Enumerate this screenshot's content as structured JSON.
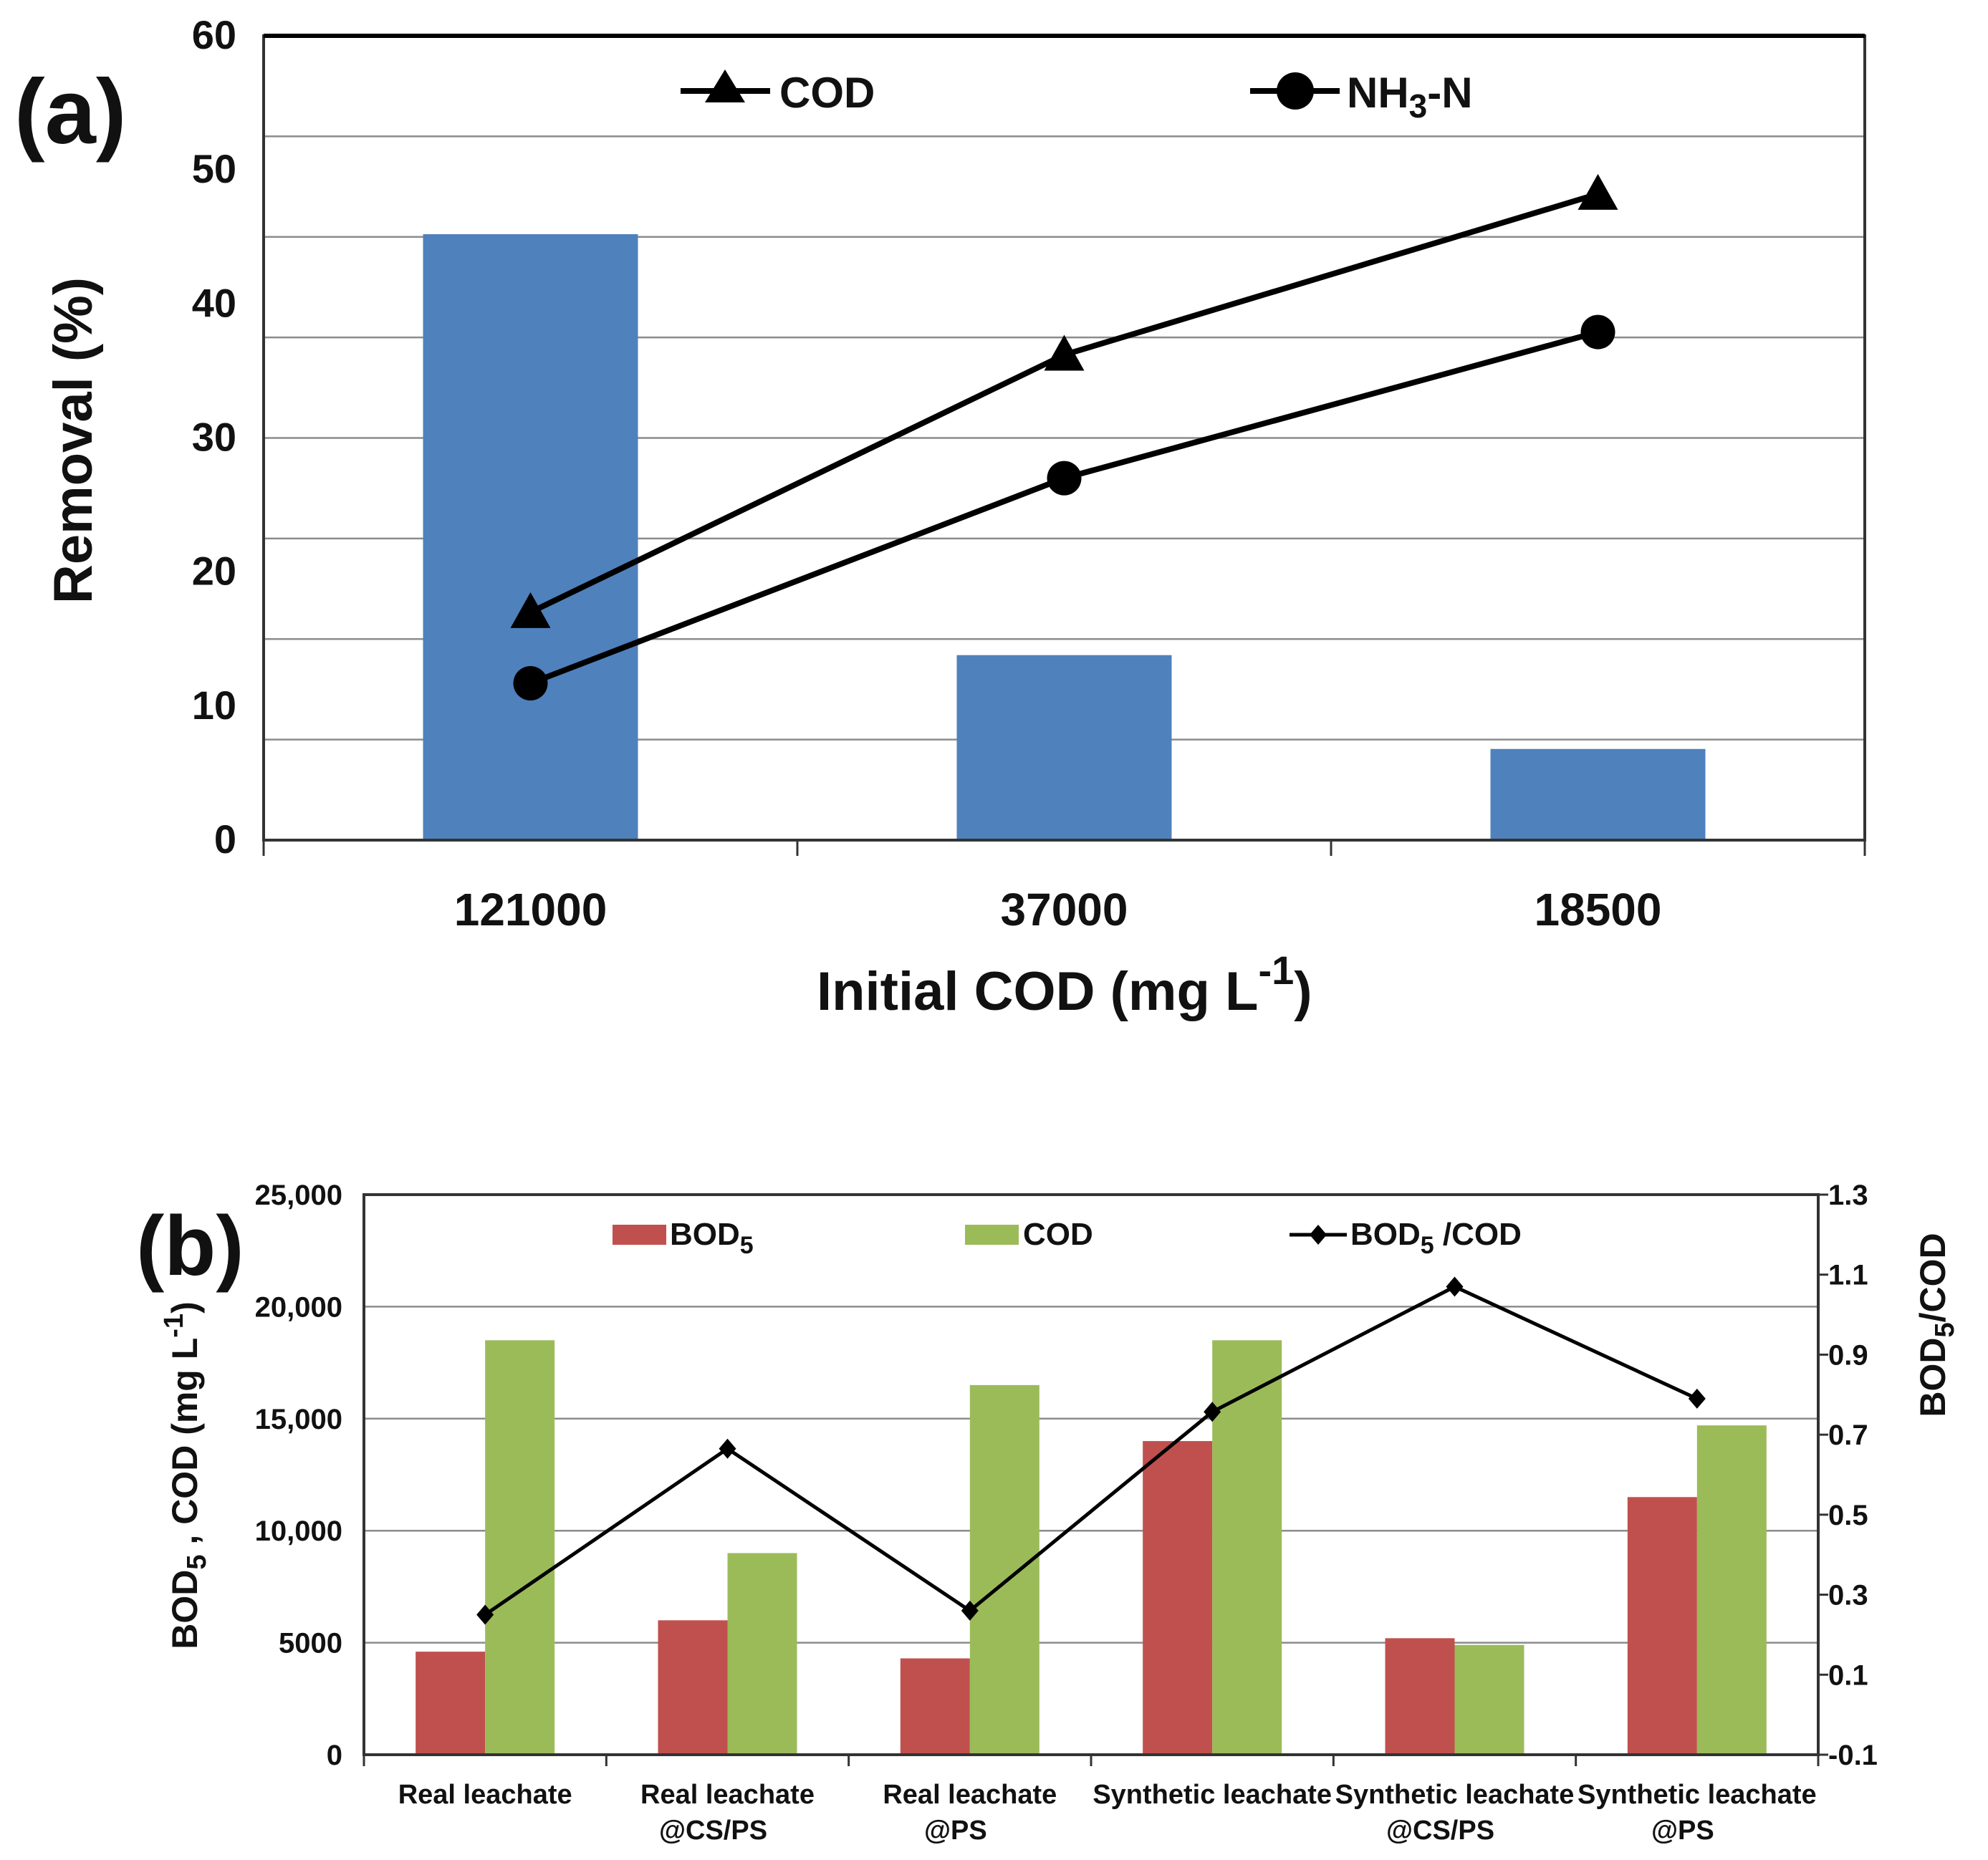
{
  "chart_data": [
    {
      "panel_label": "(a)",
      "type": "bar",
      "categories": [
        "121000",
        "37000",
        "18500"
      ],
      "bar_values": [
        45.2,
        13.8,
        6.8
      ],
      "series": [
        {
          "name": "COD",
          "marker": "triangle",
          "values": [
            17,
            36.2,
            48.2
          ]
        },
        {
          "name": "NH3-N",
          "marker": "circle",
          "values": [
            11.7,
            27,
            37.9
          ]
        }
      ],
      "legend": {
        "cod": "COD",
        "nh3_base": "NH",
        "nh3_sub": "3",
        "nh3_tail": "-N"
      },
      "xlabel_base": "Initial COD (mg L",
      "xlabel_sup": "-1",
      "xlabel_tail": ")",
      "ylabel": "Removal (%)",
      "ylim": [
        0,
        60
      ],
      "yticks": [
        "0",
        "10",
        "20",
        "30",
        "40",
        "50",
        "60"
      ],
      "bar_color": "#4f81bd",
      "grid": true
    },
    {
      "panel_label": "(b)",
      "type": "bar",
      "categories": [
        [
          "Real leachate",
          ""
        ],
        [
          "Real leachate",
          "@CS/PS"
        ],
        [
          "Real leachate",
          "@PS"
        ],
        [
          "Synthetic leachate",
          ""
        ],
        [
          "Synthetic leachate",
          "@CS/PS"
        ],
        [
          "Synthetic leachate",
          "@PS"
        ]
      ],
      "series": [
        {
          "name": "BOD5",
          "color": "#c0504d",
          "values": [
            4600,
            6000,
            4300,
            14000,
            5200,
            11500
          ]
        },
        {
          "name": "COD",
          "color": "#9bbb59",
          "values": [
            18500,
            9000,
            16500,
            18500,
            4900,
            14700
          ]
        },
        {
          "name": "BOD5/COD",
          "axis": "right",
          "marker": "diamond",
          "values": [
            0.25,
            0.665,
            0.26,
            0.757,
            1.07,
            0.79
          ]
        }
      ],
      "legend": {
        "bod_base": "BOD",
        "bod_sub": "5",
        "cod": "COD",
        "ratio_base": "BOD",
        "ratio_sub": "5",
        "ratio_tail": " /COD"
      },
      "ylabel_left": {
        "base": "BOD",
        "sub": "5",
        "mid": " , COD (mg L",
        "sup": "-1",
        "tail": ")"
      },
      "ylabel_right": {
        "base": "BOD",
        "sub": "5",
        "tail": "/COD"
      },
      "ylim_left": [
        0,
        25000
      ],
      "ylim_right": [
        -0.1,
        1.3
      ],
      "yticks_left": [
        "0",
        "5000",
        "10,000",
        "15,000",
        "20,000",
        "25,000"
      ],
      "yticks_right": [
        "-0.1",
        "0.1",
        "0.3",
        "0.5",
        "0.7",
        "0.9",
        "1.1",
        "1.3"
      ],
      "grid": true
    }
  ]
}
